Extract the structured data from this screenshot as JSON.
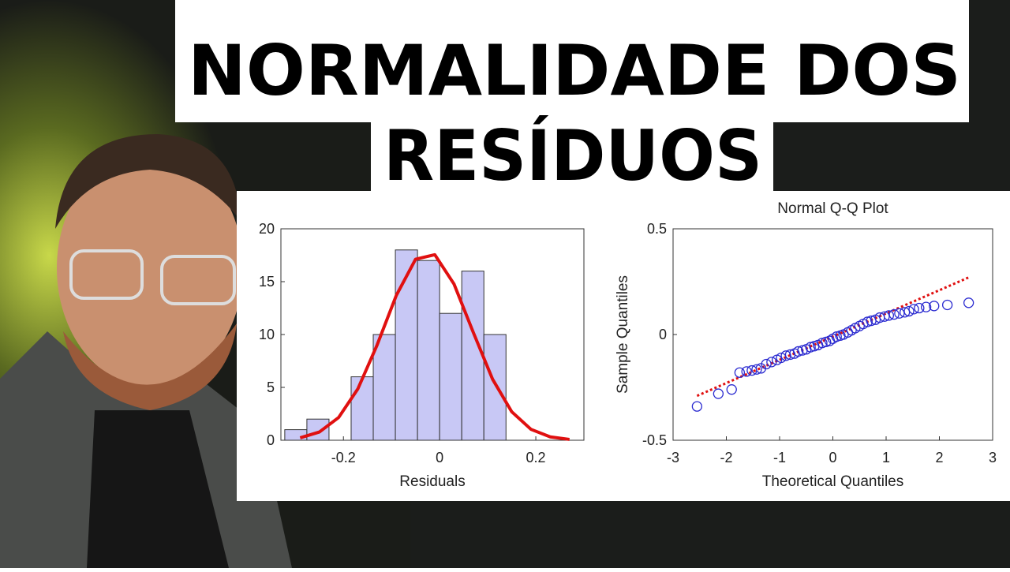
{
  "thumbnail_title": [
    "NORMALIDADE DOS",
    "RESÍDUOS"
  ],
  "chart_data": [
    {
      "type": "histogram",
      "bins": [
        -0.322,
        -0.276,
        -0.23,
        -0.184,
        -0.138,
        -0.092,
        -0.046,
        0,
        0.046,
        0.092,
        0.138
      ],
      "values": [
        1,
        2,
        0,
        6,
        10,
        18,
        17,
        12,
        16,
        10
      ],
      "color": "#c8c8f5",
      "xlim": [
        -0.33,
        0.3
      ],
      "ylim": [
        0,
        20
      ],
      "xticks": [
        -0.2,
        0,
        0.2
      ],
      "yticks": [
        0,
        5,
        10,
        15,
        20
      ],
      "x_label": "Residuals",
      "curve": {
        "color": "#e01010",
        "x": [
          -0.29,
          -0.25,
          -0.21,
          -0.17,
          -0.13,
          -0.09,
          -0.05,
          -0.01,
          0.03,
          0.07,
          0.11,
          0.15,
          0.19,
          0.23,
          0.27
        ],
        "values": [
          0.23,
          0.78,
          2.15,
          4.86,
          9.01,
          13.71,
          17.12,
          17.55,
          14.77,
          10.2,
          5.78,
          2.69,
          1.03,
          0.32,
          0.08
        ]
      }
    },
    {
      "type": "qq",
      "title": "Normal Q-Q Plot",
      "x_label": "Theoretical Quantiles",
      "y_label": "Sample Quantiles",
      "color": "#2a2ad0",
      "x": [
        -2.55,
        -2.15,
        -1.9,
        -1.75,
        -1.62,
        -1.52,
        -1.43,
        -1.35,
        -1.25,
        -1.15,
        -1.05,
        -0.97,
        -0.88,
        -0.8,
        -0.72,
        -0.65,
        -0.57,
        -0.5,
        -0.42,
        -0.35,
        -0.28,
        -0.2,
        -0.13,
        -0.06,
        0,
        0.07,
        0.14,
        0.2,
        0.28,
        0.35,
        0.42,
        0.5,
        0.57,
        0.65,
        0.72,
        0.8,
        0.88,
        0.97,
        1.05,
        1.15,
        1.25,
        1.35,
        1.43,
        1.52,
        1.62,
        1.75,
        1.9,
        2.15,
        2.55
      ],
      "values": [
        -0.34,
        -0.28,
        -0.26,
        -0.18,
        -0.175,
        -0.17,
        -0.165,
        -0.16,
        -0.14,
        -0.13,
        -0.12,
        -0.11,
        -0.1,
        -0.095,
        -0.09,
        -0.08,
        -0.075,
        -0.07,
        -0.06,
        -0.055,
        -0.05,
        -0.04,
        -0.035,
        -0.03,
        -0.02,
        -0.01,
        -0.005,
        0,
        0.01,
        0.02,
        0.03,
        0.04,
        0.05,
        0.06,
        0.065,
        0.07,
        0.08,
        0.085,
        0.09,
        0.095,
        0.1,
        0.105,
        0.11,
        0.12,
        0.125,
        0.13,
        0.135,
        0.14,
        0.15
      ],
      "xlim": [
        -3,
        3
      ],
      "ylim": [
        -0.5,
        0.5
      ],
      "xticks": [
        -3,
        -2,
        -1,
        0,
        1,
        2,
        3
      ],
      "yticks": [
        -0.5,
        0,
        0.5
      ],
      "reference_line": {
        "color": "#e01010",
        "x": [
          -2.55,
          2.55
        ],
        "values": [
          -0.29,
          0.27
        ]
      }
    }
  ]
}
